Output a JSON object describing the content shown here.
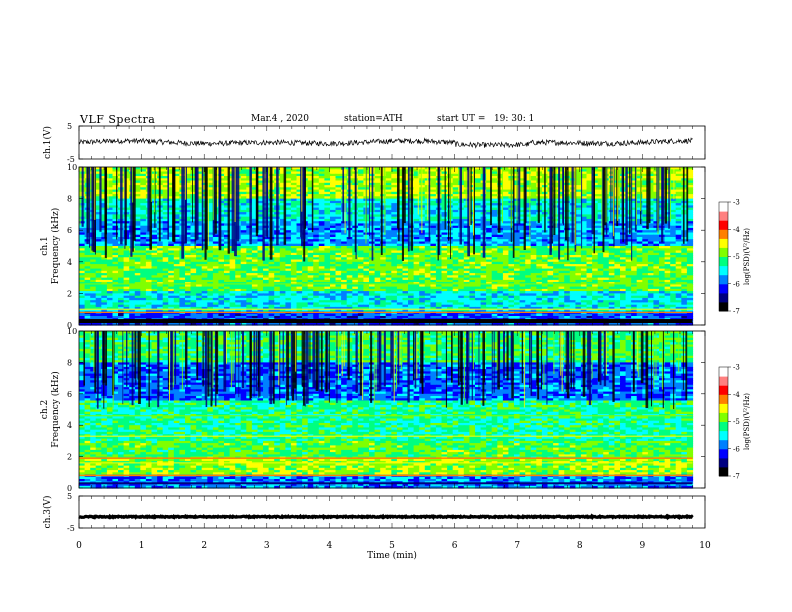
{
  "header": {
    "title": "VLF Spectra",
    "date": "Mar.4 , 2020",
    "station": "station=ATH",
    "start": "start UT =   19: 30: 1"
  },
  "colorbar": {
    "label": "log(PSD)(V²/Hz)",
    "ticks": [
      "-3",
      "-4",
      "-5",
      "-6",
      "-7"
    ],
    "colors": [
      "#000000",
      "#000080",
      "#0000ff",
      "#0080ff",
      "#00ffff",
      "#00ff80",
      "#80ff00",
      "#ffff00",
      "#ff8000",
      "#ff0000",
      "#ff8080",
      "#ffffff"
    ]
  },
  "chart_data": [
    {
      "type": "line",
      "name": "ch1-waveform",
      "ylabel": "ch.1(V)",
      "ylim": [
        -5,
        5
      ],
      "yticks": [
        "5",
        "-5"
      ],
      "xlim": [
        0,
        10
      ],
      "description_values": {
        "mean": 0,
        "amplitude_approx": 1.5
      }
    },
    {
      "type": "heatmap",
      "name": "ch1-spectrogram",
      "ylabel": "ch.1\nFrequency (kHz)",
      "ylim": [
        0,
        10
      ],
      "yticks": [
        "10",
        "8",
        "6",
        "4",
        "2",
        "0"
      ],
      "xlim": [
        0,
        10
      ],
      "zlim": [
        -7,
        -3
      ]
    },
    {
      "type": "heatmap",
      "name": "ch2-spectrogram",
      "ylabel": "ch.2\nFrequency (kHz)",
      "ylim": [
        0,
        10
      ],
      "yticks": [
        "10",
        "8",
        "6",
        "4",
        "2",
        "0"
      ],
      "xlim": [
        0,
        10
      ],
      "zlim": [
        -7,
        -3
      ]
    },
    {
      "type": "line",
      "name": "ch3-waveform",
      "ylabel": "ch.3(V)",
      "ylim": [
        -5,
        5
      ],
      "yticks": [
        "5",
        "-5"
      ],
      "xlim": [
        0,
        10
      ],
      "description_values": {
        "mean": -1.5,
        "amplitude_approx": 0.2
      }
    }
  ],
  "xaxis": {
    "label": "Time (min)",
    "ticks": [
      "0",
      "1",
      "2",
      "3",
      "4",
      "5",
      "6",
      "7",
      "8",
      "9",
      "10"
    ]
  }
}
